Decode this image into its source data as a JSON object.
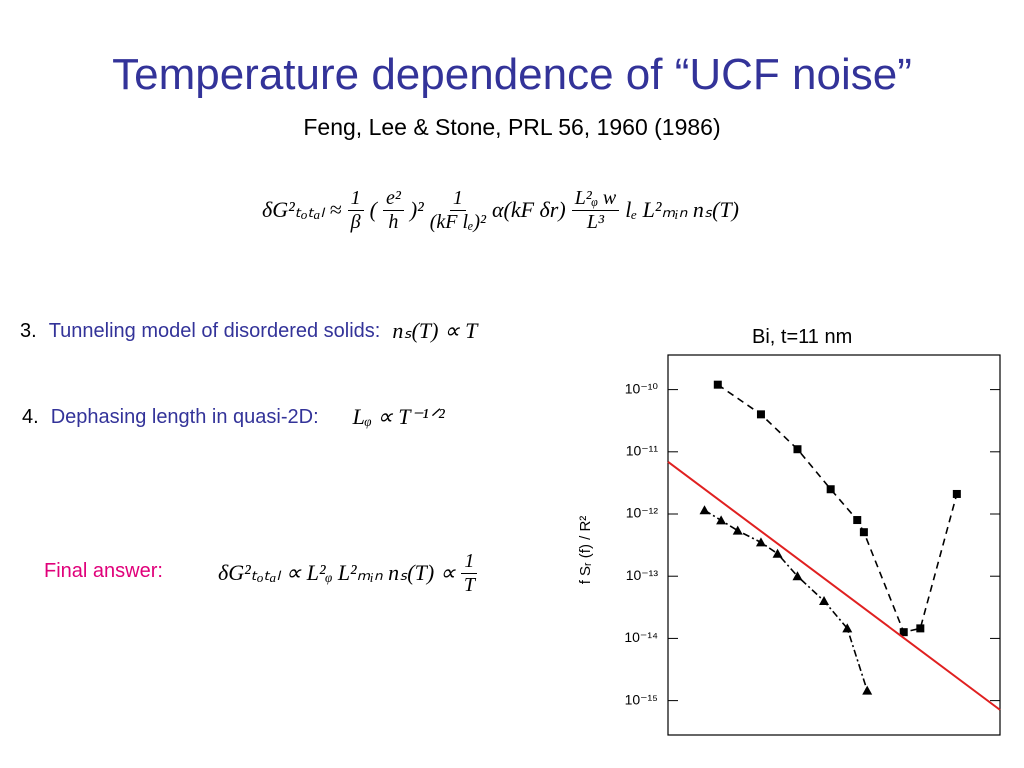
{
  "title": "Temperature dependence of “UCF noise”",
  "subtitle": "Feng, Lee & Stone, PRL 56, 1960 (1986)",
  "main_equation": [
    "δG²ₜₒₜₐₗ ≈",
    {
      "num": "1",
      "den": "β"
    },
    "(",
    {
      "num": "e²",
      "den": "h"
    },
    ")²",
    {
      "num": "1",
      "den": "(kF lₑ)²"
    },
    "α(kF δr)",
    {
      "num": "L²ᵩ w",
      "den": "L³"
    },
    "lₑ L²ₘᵢₙ nₛ(T)"
  ],
  "items": [
    {
      "number": "3.",
      "label": "Tunneling model of disordered solids:",
      "formula": "nₛ(T) ∝ T"
    },
    {
      "number": "4.",
      "label": "Dephasing length in quasi-2D:",
      "formula": "Lᵩ ∝ T⁻¹ᐟ²"
    }
  ],
  "final": {
    "label": "Final answer:",
    "equation": [
      "δG²ₜₒₜₐₗ ∝ L²ᵩ L²ₘᵢₙ nₛ(T) ∝",
      {
        "num": "1",
        "den": "T"
      }
    ]
  },
  "chart_data": {
    "type": "scatter",
    "title": "Bi,   t=11 nm",
    "ylabel": "f Sᵣ (f) / R²",
    "log_y": true,
    "xlim": [
      0,
      1
    ],
    "ylim": [
      2.8e-16,
      3.6e-10
    ],
    "yticks": [
      {
        "value": 1e-10,
        "label": "10⁻¹⁰"
      },
      {
        "value": 1e-11,
        "label": "10⁻¹¹"
      },
      {
        "value": 1e-12,
        "label": "10⁻¹²"
      },
      {
        "value": 1e-13,
        "label": "10⁻¹³"
      },
      {
        "value": 1e-14,
        "label": "10⁻¹⁴"
      },
      {
        "value": 1e-15,
        "label": "10⁻¹⁵"
      }
    ],
    "series": [
      {
        "color": "#000000",
        "marker": "square",
        "dash": "7,5",
        "x": [
          0.15,
          0.28,
          0.39,
          0.49,
          0.57,
          0.59,
          0.71,
          0.76,
          0.87
        ],
        "values": [
          1.2e-10,
          4e-11,
          1.1e-11,
          2.5e-12,
          8e-13,
          5.1e-13,
          1.26e-14,
          1.45e-14,
          2.1e-12
        ]
      },
      {
        "color": "#000000",
        "marker": "triangle",
        "dash": "7,3,2,3",
        "x": [
          0.11,
          0.16,
          0.21,
          0.28,
          0.33,
          0.39,
          0.47,
          0.54,
          0.6
        ],
        "values": [
          1.15e-12,
          7.9e-13,
          5.4e-13,
          3.5e-13,
          2.3e-13,
          1e-13,
          4e-14,
          1.45e-14,
          1.45e-15
        ]
      },
      {
        "color": "#e02020",
        "marker": "none",
        "dash": "none",
        "x": [
          0,
          1
        ],
        "values": [
          6.9e-12,
          7.1e-16
        ]
      }
    ]
  }
}
